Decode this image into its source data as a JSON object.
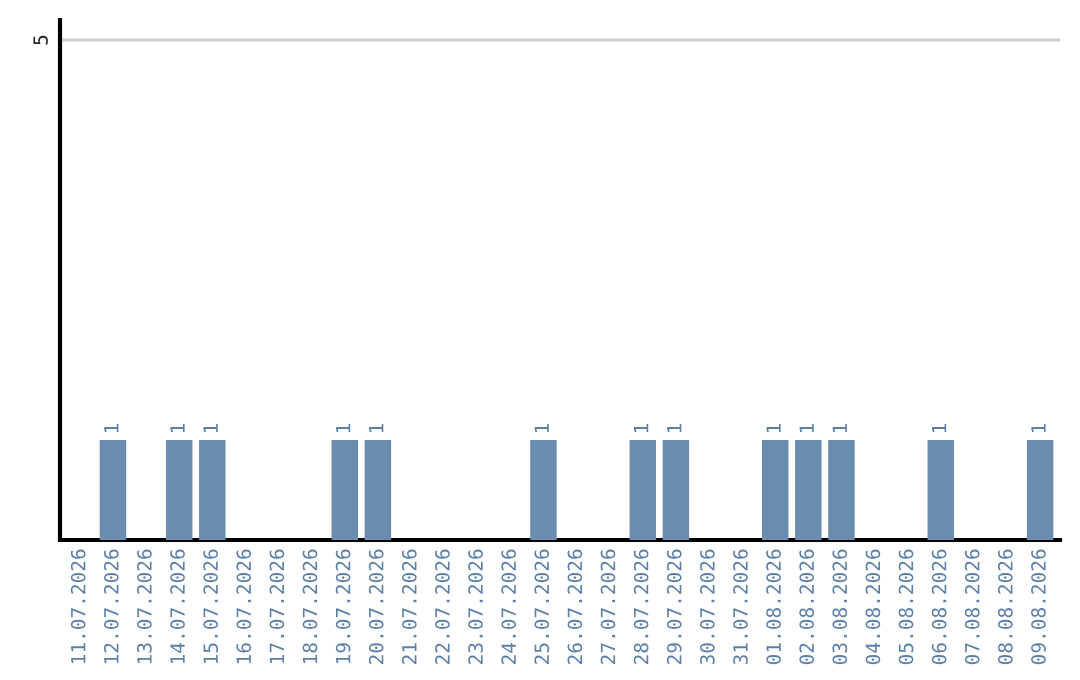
{
  "chart_data": {
    "type": "bar",
    "categories": [
      "11.07.2026",
      "12.07.2026",
      "13.07.2026",
      "14.07.2026",
      "15.07.2026",
      "16.07.2026",
      "17.07.2026",
      "18.07.2026",
      "19.07.2026",
      "20.07.2026",
      "21.07.2026",
      "22.07.2026",
      "23.07.2026",
      "24.07.2026",
      "25.07.2026",
      "26.07.2026",
      "27.07.2026",
      "28.07.2026",
      "29.07.2026",
      "30.07.2026",
      "31.07.2026",
      "01.08.2026",
      "02.08.2026",
      "03.08.2026",
      "04.08.2026",
      "05.08.2026",
      "06.08.2026",
      "07.08.2026",
      "08.08.2026",
      "09.08.2026"
    ],
    "values": [
      0,
      1,
      0,
      1,
      1,
      0,
      0,
      0,
      1,
      1,
      0,
      0,
      0,
      0,
      1,
      0,
      0,
      1,
      1,
      0,
      0,
      1,
      1,
      1,
      0,
      0,
      1,
      0,
      0,
      1
    ],
    "value_labels": [
      null,
      "1",
      null,
      "1",
      "1",
      null,
      null,
      null,
      "1",
      "1",
      null,
      null,
      null,
      null,
      "1",
      null,
      null,
      "1",
      "1",
      null,
      null,
      "1",
      "1",
      "1",
      null,
      null,
      "1",
      null,
      null,
      "1"
    ],
    "color": "#6a8caf",
    "ylim": [
      0,
      5.2
    ],
    "yticks": [
      5
    ],
    "grid": "y"
  }
}
